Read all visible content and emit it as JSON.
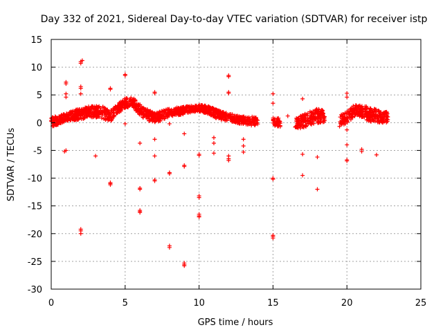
{
  "chart_data": {
    "type": "scatter",
    "title": "Day 332 of 2021, Sidereal Day-to-day VTEC variation (SDTVAR) for receiver istp",
    "xlabel": "GPS time / hours",
    "ylabel": "SDTVAR / TECUs",
    "xlim": [
      0,
      25
    ],
    "ylim": [
      -30,
      15
    ],
    "xticks": [
      0,
      5,
      10,
      15,
      20,
      25
    ],
    "yticks": [
      -30,
      -25,
      -20,
      -15,
      -10,
      -5,
      0,
      5,
      10,
      15
    ],
    "grid": true,
    "marker": "+",
    "color": "#ff0000",
    "band": {
      "x": [
        0.0,
        0.5,
        1.0,
        1.5,
        2.0,
        2.5,
        3.0,
        3.5,
        4.0,
        4.5,
        5.0,
        5.5,
        6.0,
        6.5,
        7.0,
        7.5,
        8.0,
        8.5,
        9.0,
        9.5,
        10.0,
        10.5,
        11.0,
        11.5,
        12.0,
        12.5,
        13.0,
        13.5,
        14.0,
        15.0,
        15.5,
        16.5,
        17.0,
        17.5,
        18.0,
        18.5,
        19.5,
        20.0,
        20.5,
        21.0,
        21.5,
        22.0,
        22.5,
        22.8
      ],
      "y": [
        0.0,
        0.5,
        1.0,
        1.3,
        1.6,
        1.9,
        2.0,
        1.8,
        1.2,
        2.5,
        3.5,
        3.8,
        2.2,
        1.4,
        1.0,
        1.2,
        1.8,
        2.0,
        2.2,
        2.5,
        2.6,
        2.4,
        1.8,
        1.2,
        1.0,
        0.6,
        0.4,
        0.3,
        0.2,
        0.2,
        0.0,
        -0.2,
        0.2,
        0.8,
        1.2,
        1.0,
        0.2,
        1.0,
        2.2,
        2.0,
        1.5,
        1.2,
        1.0,
        1.0
      ],
      "spread": [
        0.9,
        0.8,
        0.7,
        0.9,
        1.0,
        1.0,
        1.0,
        1.1,
        1.0,
        0.9,
        0.9,
        0.8,
        1.1,
        1.0,
        0.9,
        0.9,
        0.8,
        0.7,
        0.7,
        0.6,
        0.6,
        0.7,
        0.8,
        0.8,
        0.7,
        0.7,
        0.7,
        0.8,
        0.8,
        0.7,
        0.8,
        0.9,
        1.2,
        1.2,
        1.3,
        1.2,
        1.1,
        1.2,
        1.1,
        1.1,
        1.3,
        1.2,
        1.0,
        1.0
      ],
      "gaps": [
        [
          14.0,
          15.0
        ],
        [
          15.5,
          16.5
        ],
        [
          18.5,
          19.5
        ],
        [
          22.8,
          25.0
        ]
      ],
      "density_per_hour": 90
    },
    "outliers": [
      {
        "x": 1.0,
        "y": 7.0
      },
      {
        "x": 1.0,
        "y": 7.3
      },
      {
        "x": 1.0,
        "y": 5.2
      },
      {
        "x": 1.0,
        "y": 4.6
      },
      {
        "x": 1.0,
        "y": -5.0
      },
      {
        "x": 0.9,
        "y": -5.2
      },
      {
        "x": 2.0,
        "y": 11.0
      },
      {
        "x": 2.0,
        "y": 10.7
      },
      {
        "x": 2.1,
        "y": 11.2
      },
      {
        "x": 2.0,
        "y": 6.5
      },
      {
        "x": 2.0,
        "y": 6.2
      },
      {
        "x": 2.0,
        "y": 5.2
      },
      {
        "x": 2.0,
        "y": -19.5
      },
      {
        "x": 2.0,
        "y": -20.0
      },
      {
        "x": 2.0,
        "y": -19.2
      },
      {
        "x": 3.0,
        "y": -6.0
      },
      {
        "x": 4.0,
        "y": 6.0
      },
      {
        "x": 4.0,
        "y": 6.2
      },
      {
        "x": 4.0,
        "y": -11.0
      },
      {
        "x": 4.0,
        "y": -10.8
      },
      {
        "x": 4.0,
        "y": -11.2
      },
      {
        "x": 5.0,
        "y": 8.5
      },
      {
        "x": 5.0,
        "y": 8.7
      },
      {
        "x": 5.0,
        "y": -0.2
      },
      {
        "x": 6.0,
        "y": -3.7
      },
      {
        "x": 6.0,
        "y": -11.8
      },
      {
        "x": 6.0,
        "y": -12.0
      },
      {
        "x": 6.0,
        "y": -15.8
      },
      {
        "x": 6.0,
        "y": -16.2
      },
      {
        "x": 6.0,
        "y": -16.0
      },
      {
        "x": 7.0,
        "y": 5.5
      },
      {
        "x": 7.0,
        "y": 5.3
      },
      {
        "x": 7.0,
        "y": -3.0
      },
      {
        "x": 7.0,
        "y": -6.0
      },
      {
        "x": 7.0,
        "y": -10.3
      },
      {
        "x": 7.0,
        "y": -10.5
      },
      {
        "x": 8.0,
        "y": -0.2
      },
      {
        "x": 8.0,
        "y": -9.0
      },
      {
        "x": 8.0,
        "y": -9.2
      },
      {
        "x": 8.0,
        "y": -22.2
      },
      {
        "x": 8.0,
        "y": -22.5
      },
      {
        "x": 9.0,
        "y": -2.0
      },
      {
        "x": 9.0,
        "y": -7.7
      },
      {
        "x": 9.0,
        "y": -7.9
      },
      {
        "x": 9.0,
        "y": -25.3
      },
      {
        "x": 9.0,
        "y": -25.8
      },
      {
        "x": 9.0,
        "y": -25.6
      },
      {
        "x": 10.0,
        "y": -5.7
      },
      {
        "x": 10.0,
        "y": -5.9
      },
      {
        "x": 10.0,
        "y": -13.2
      },
      {
        "x": 10.0,
        "y": -13.5
      },
      {
        "x": 10.0,
        "y": -16.5
      },
      {
        "x": 10.0,
        "y": -17.0
      },
      {
        "x": 10.0,
        "y": -16.8
      },
      {
        "x": 11.0,
        "y": -2.7
      },
      {
        "x": 11.0,
        "y": -3.7
      },
      {
        "x": 11.0,
        "y": -5.5
      },
      {
        "x": 12.0,
        "y": 8.3
      },
      {
        "x": 12.0,
        "y": 8.5
      },
      {
        "x": 12.0,
        "y": 5.3
      },
      {
        "x": 12.0,
        "y": 5.5
      },
      {
        "x": 12.0,
        "y": -6.0
      },
      {
        "x": 12.0,
        "y": -6.5
      },
      {
        "x": 12.0,
        "y": -6.8
      },
      {
        "x": 13.0,
        "y": -3.0
      },
      {
        "x": 13.0,
        "y": -4.2
      },
      {
        "x": 13.0,
        "y": -5.3
      },
      {
        "x": 15.0,
        "y": 5.2
      },
      {
        "x": 15.0,
        "y": 3.5
      },
      {
        "x": 15.0,
        "y": -10.0
      },
      {
        "x": 15.0,
        "y": -10.2
      },
      {
        "x": 15.0,
        "y": -20.3
      },
      {
        "x": 15.0,
        "y": -20.8
      },
      {
        "x": 15.0,
        "y": -20.5
      },
      {
        "x": 16.0,
        "y": 1.2
      },
      {
        "x": 17.0,
        "y": 4.3
      },
      {
        "x": 17.0,
        "y": -5.7
      },
      {
        "x": 17.0,
        "y": -9.5
      },
      {
        "x": 18.0,
        "y": -6.2
      },
      {
        "x": 18.0,
        "y": -12.0
      },
      {
        "x": 20.0,
        "y": 5.3
      },
      {
        "x": 20.0,
        "y": 4.6
      },
      {
        "x": 20.0,
        "y": -1.3
      },
      {
        "x": 20.0,
        "y": -4.0
      },
      {
        "x": 20.0,
        "y": -6.7
      },
      {
        "x": 20.0,
        "y": -6.9
      },
      {
        "x": 21.0,
        "y": -4.8
      },
      {
        "x": 21.0,
        "y": -5.2
      },
      {
        "x": 22.0,
        "y": -5.8
      }
    ]
  }
}
